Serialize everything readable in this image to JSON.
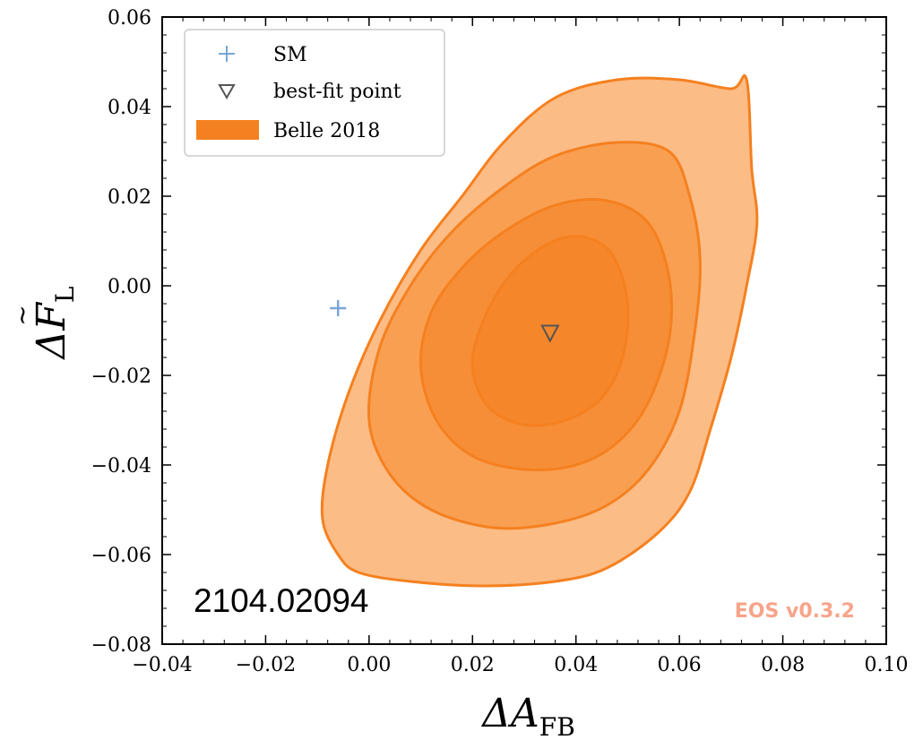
{
  "chart_data": {
    "type": "contour",
    "xlabel": "ΔA",
    "xlabel_sub": "FB",
    "ylabel": "ΔF",
    "ylabel_sub": "L",
    "xlim": [
      -0.04,
      0.1
    ],
    "ylim": [
      -0.08,
      0.06
    ],
    "xticks": [
      -0.04,
      -0.02,
      0.0,
      0.02,
      0.04,
      0.06,
      0.08,
      0.1
    ],
    "xtick_labels": [
      "−0.04",
      "−0.02",
      "0.00",
      "0.02",
      "0.04",
      "0.06",
      "0.08",
      "0.10"
    ],
    "yticks": [
      -0.08,
      -0.06,
      -0.04,
      -0.02,
      0.0,
      0.02,
      0.04,
      0.06
    ],
    "ytick_labels": [
      "−0.08",
      "−0.06",
      "−0.04",
      "−0.02",
      "0.00",
      "0.02",
      "0.04",
      "0.06"
    ],
    "legend_position": "top-left",
    "legend": [
      {
        "marker": "plus",
        "label": "SM",
        "color": "#7aa6d6"
      },
      {
        "marker": "triangle-down",
        "label": "best-fit point",
        "color": "#555555"
      },
      {
        "marker": "patch",
        "label": "Belle 2018",
        "color": "#f5801f"
      }
    ],
    "points": [
      {
        "name": "SM",
        "x": -0.006,
        "y": -0.005,
        "marker": "plus",
        "color": "#7aa6d6"
      },
      {
        "name": "best-fit point",
        "x": 0.035,
        "y": -0.0105,
        "marker": "triangle-down",
        "color": "#555555"
      }
    ],
    "regions": [
      {
        "level": "outer",
        "fill": "#fbbc86",
        "stroke": "#f5801f",
        "boundary": [
          [
            0.073,
            0.046
          ],
          [
            0.074,
            0.026
          ],
          [
            0.075,
            0.014
          ],
          [
            0.073,
            0.0
          ],
          [
            0.07,
            -0.016
          ],
          [
            0.066,
            -0.032
          ],
          [
            0.062,
            -0.046
          ],
          [
            0.056,
            -0.055
          ],
          [
            0.046,
            -0.063
          ],
          [
            0.036,
            -0.066
          ],
          [
            0.022,
            -0.067
          ],
          [
            0.008,
            -0.066
          ],
          [
            -0.002,
            -0.064
          ],
          [
            -0.006,
            -0.06
          ],
          [
            -0.009,
            -0.052
          ],
          [
            -0.008,
            -0.04
          ],
          [
            -0.004,
            -0.024
          ],
          [
            0.002,
            -0.008
          ],
          [
            0.01,
            0.008
          ],
          [
            0.018,
            0.02
          ],
          [
            0.026,
            0.032
          ],
          [
            0.036,
            0.042
          ],
          [
            0.048,
            0.046
          ],
          [
            0.06,
            0.046
          ],
          [
            0.07,
            0.044
          ]
        ]
      },
      {
        "level": "middle",
        "fill": "#f99f52",
        "stroke": "#f5801f",
        "boundary": [
          [
            0.062,
            0.02
          ],
          [
            0.064,
            0.006
          ],
          [
            0.063,
            -0.01
          ],
          [
            0.06,
            -0.028
          ],
          [
            0.054,
            -0.041
          ],
          [
            0.046,
            -0.049
          ],
          [
            0.036,
            -0.053
          ],
          [
            0.024,
            -0.054
          ],
          [
            0.012,
            -0.05
          ],
          [
            0.004,
            -0.042
          ],
          [
            0.0,
            -0.03
          ],
          [
            0.002,
            -0.014
          ],
          [
            0.008,
            0.0
          ],
          [
            0.016,
            0.012
          ],
          [
            0.026,
            0.022
          ],
          [
            0.036,
            0.029
          ],
          [
            0.048,
            0.032
          ],
          [
            0.058,
            0.03
          ]
        ]
      },
      {
        "level": "inner",
        "fill": "#f68e37",
        "stroke": "#f5801f",
        "boundary": [
          [
            0.058,
            0.002
          ],
          [
            0.058,
            -0.012
          ],
          [
            0.054,
            -0.026
          ],
          [
            0.048,
            -0.035
          ],
          [
            0.04,
            -0.04
          ],
          [
            0.03,
            -0.041
          ],
          [
            0.02,
            -0.038
          ],
          [
            0.013,
            -0.03
          ],
          [
            0.01,
            -0.018
          ],
          [
            0.012,
            -0.006
          ],
          [
            0.018,
            0.004
          ],
          [
            0.026,
            0.012
          ],
          [
            0.036,
            0.018
          ],
          [
            0.046,
            0.019
          ],
          [
            0.054,
            0.014
          ]
        ]
      },
      {
        "level": "core",
        "fill": "#f5862a",
        "stroke": "#f5801f",
        "boundary": [
          [
            0.05,
            -0.004
          ],
          [
            0.049,
            -0.016
          ],
          [
            0.045,
            -0.025
          ],
          [
            0.038,
            -0.03
          ],
          [
            0.03,
            -0.031
          ],
          [
            0.023,
            -0.027
          ],
          [
            0.02,
            -0.018
          ],
          [
            0.022,
            -0.008
          ],
          [
            0.027,
            0.002
          ],
          [
            0.034,
            0.009
          ],
          [
            0.041,
            0.011
          ],
          [
            0.047,
            0.007
          ]
        ]
      }
    ]
  },
  "annotation": "2104.02094",
  "watermark": {
    "text": "EOS v0.3.2",
    "color": "#f7a48a"
  }
}
